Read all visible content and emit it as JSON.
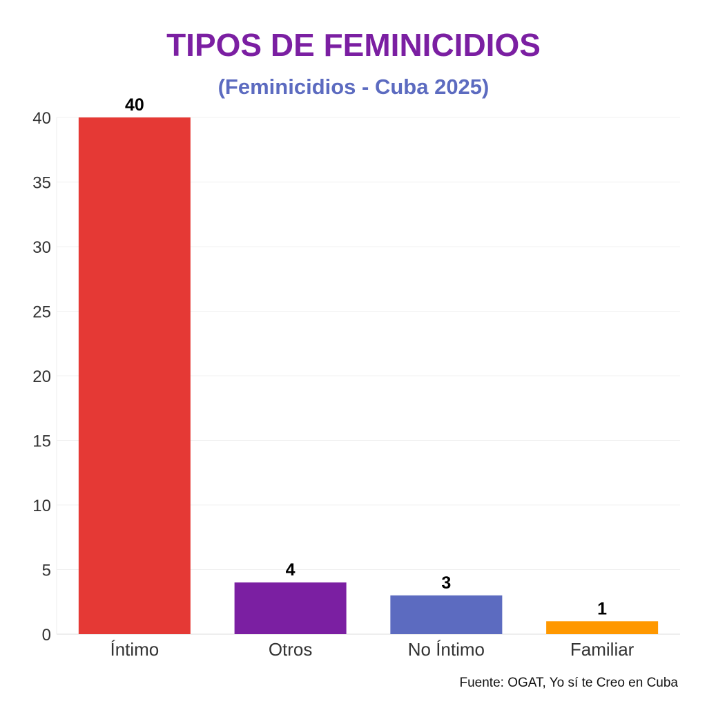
{
  "chart_data": {
    "type": "bar",
    "title": "TIPOS DE FEMINICIDIOS",
    "subtitle": "(Feminicidios - Cuba 2025)",
    "categories": [
      "Íntimo",
      "Otros",
      "No Íntimo",
      "Familiar"
    ],
    "values": [
      40,
      4,
      3,
      1
    ],
    "colors": [
      "#e53935",
      "#7b1fa2",
      "#5c6bc0",
      "#ff9800"
    ],
    "ylim": [
      0,
      40
    ],
    "yticks": [
      0,
      5,
      10,
      15,
      20,
      25,
      30,
      35,
      40
    ],
    "grid": true,
    "data_labels": true,
    "source": "Fuente: OGAT, Yo sí te Creo en Cuba"
  }
}
